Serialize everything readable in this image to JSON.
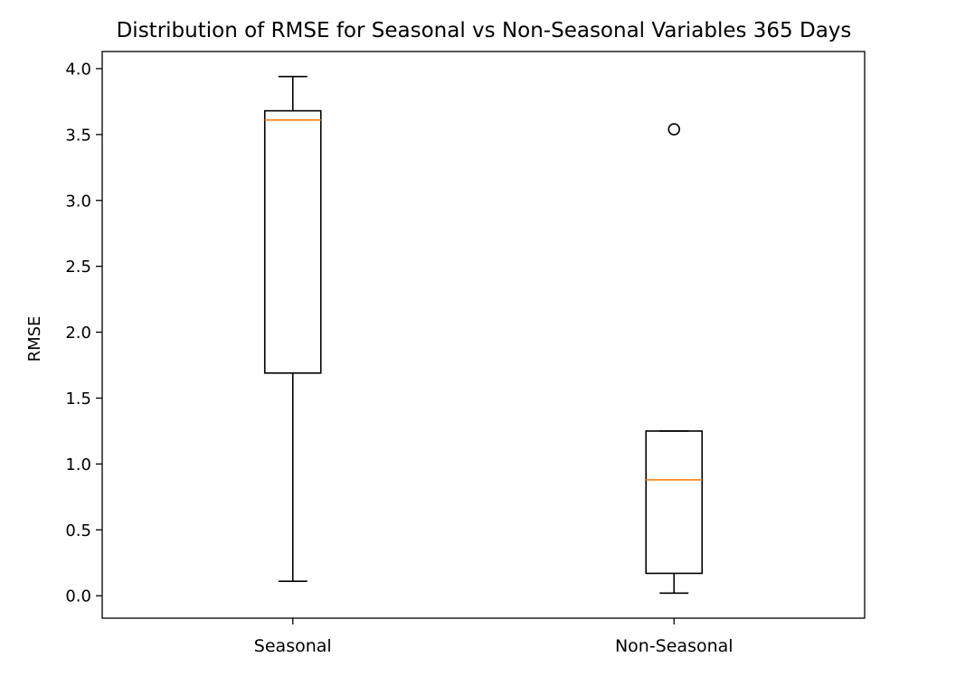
{
  "chart_data": {
    "type": "boxplot",
    "title": "Distribution of RMSE for Seasonal vs Non-Seasonal Variables 365 Days",
    "xlabel": "",
    "ylabel": "RMSE",
    "ylim": [
      -0.17,
      4.13
    ],
    "yticks": [
      "0.0",
      "0.5",
      "1.0",
      "1.5",
      "2.0",
      "2.5",
      "3.0",
      "3.5",
      "4.0"
    ],
    "ytick_values": [
      0.0,
      0.5,
      1.0,
      1.5,
      2.0,
      2.5,
      3.0,
      3.5,
      4.0
    ],
    "grid": false,
    "categories": [
      "Seasonal",
      "Non-Seasonal"
    ],
    "boxes": [
      {
        "whisker_low": 0.11,
        "q1": 1.69,
        "median": 3.61,
        "q3": 3.68,
        "whisker_high": 3.94,
        "outliers": []
      },
      {
        "whisker_low": 0.02,
        "q1": 0.17,
        "median": 0.88,
        "q3": 1.25,
        "whisker_high": 1.25,
        "outliers": [
          3.54
        ]
      }
    ],
    "colors": {
      "box": "#000000",
      "median": "#ff7f0e"
    }
  }
}
